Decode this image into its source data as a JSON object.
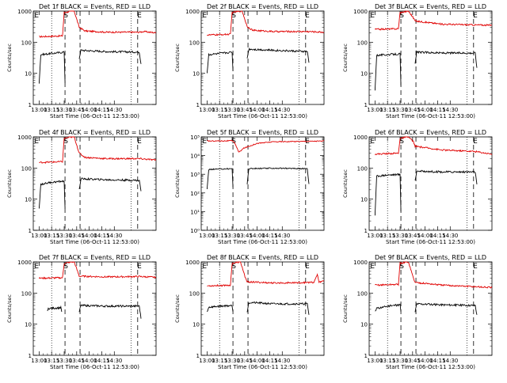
{
  "chart_data": [
    {
      "type": "line",
      "title": "Det 1f BLACK = Events, RED = LLD",
      "ylabel": "Counts/sec",
      "xlabel": "Start Time (06-Oct-11 12:53:00)",
      "scale": "log",
      "ylim": [
        1,
        1000
      ],
      "ytick_labels": [
        "1000",
        "100",
        "10",
        "1"
      ],
      "xtick_labels": [
        "13:00",
        "13:15",
        "13:30",
        "13:45",
        "14:00",
        "14:15",
        "14:30"
      ],
      "markers": [
        {
          "label": "E",
          "t": -3
        },
        {
          "label": "S",
          "t": 32
        },
        {
          "label": "E",
          "t": 120
        }
      ],
      "red": [
        [
          0,
          150
        ],
        [
          28,
          160
        ],
        [
          30,
          900
        ],
        [
          40,
          1000
        ],
        [
          42,
          1000
        ],
        [
          48,
          300
        ],
        [
          55,
          230
        ],
        [
          80,
          210
        ],
        [
          120,
          210
        ],
        [
          125,
          220
        ],
        [
          140,
          200
        ]
      ],
      "black": [
        [
          0,
          5
        ],
        [
          2,
          40
        ],
        [
          10,
          42
        ],
        [
          20,
          45
        ],
        [
          30,
          48
        ],
        [
          31,
          5
        ]
      ],
      "black2": [
        [
          48,
          30
        ],
        [
          50,
          55
        ],
        [
          80,
          50
        ],
        [
          120,
          48
        ],
        [
          122,
          20
        ]
      ]
    },
    {
      "type": "line",
      "title": "Det 2f BLACK = Events, RED = LLD",
      "ylabel": "Counts/sec",
      "xlabel": "Start Time (06-Oct-11 12:53:00)",
      "scale": "log",
      "ylim": [
        1,
        1000
      ],
      "ytick_labels": [
        "1000",
        "100",
        "10",
        "1"
      ],
      "xtick_labels": [
        "13:00",
        "13:15",
        "13:30",
        "13:45",
        "14:00",
        "14:15",
        "14:30"
      ],
      "markers": [
        {
          "label": "E",
          "t": -3
        },
        {
          "label": "S",
          "t": 32
        },
        {
          "label": "E",
          "t": 120
        }
      ],
      "red": [
        [
          0,
          170
        ],
        [
          28,
          180
        ],
        [
          30,
          900
        ],
        [
          40,
          1000
        ],
        [
          42,
          1000
        ],
        [
          48,
          320
        ],
        [
          55,
          240
        ],
        [
          80,
          220
        ],
        [
          120,
          220
        ],
        [
          140,
          210
        ]
      ],
      "black": [
        [
          0,
          10
        ],
        [
          2,
          40
        ],
        [
          10,
          42
        ],
        [
          20,
          45
        ],
        [
          30,
          48
        ],
        [
          31,
          12
        ]
      ],
      "black2": [
        [
          48,
          30
        ],
        [
          50,
          60
        ],
        [
          80,
          55
        ],
        [
          120,
          50
        ],
        [
          122,
          22
        ]
      ]
    },
    {
      "type": "line",
      "title": "Det 3f BLACK = Events, RED = LLD",
      "ylabel": "Counts/sec",
      "xlabel": "Start Time (06-Oct-11 12:53:00)",
      "scale": "log",
      "ylim": [
        1,
        1000
      ],
      "ytick_labels": [
        "1000",
        "100",
        "10",
        "1"
      ],
      "xtick_labels": [
        "13:00",
        "13:15",
        "13:30",
        "13:45",
        "14:00",
        "14:15",
        "14:30"
      ],
      "markers": [
        {
          "label": "E",
          "t": -3
        },
        {
          "label": "S",
          "t": 32
        },
        {
          "label": "E",
          "t": 120
        }
      ],
      "red": [
        [
          0,
          260
        ],
        [
          28,
          270
        ],
        [
          30,
          900
        ],
        [
          40,
          1000
        ],
        [
          46,
          600
        ],
        [
          48,
          480
        ],
        [
          80,
          380
        ],
        [
          120,
          360
        ],
        [
          140,
          350
        ]
      ],
      "black": [
        [
          0,
          3
        ],
        [
          2,
          38
        ],
        [
          15,
          40
        ],
        [
          30,
          42
        ],
        [
          31,
          4
        ]
      ],
      "black2": [
        [
          48,
          20
        ],
        [
          50,
          48
        ],
        [
          80,
          45
        ],
        [
          120,
          45
        ],
        [
          122,
          15
        ]
      ]
    },
    {
      "type": "line",
      "title": "Det 4f BLACK = Events, RED = LLD",
      "ylabel": "Counts/sec",
      "xlabel": "Start Time (06-Oct-11 12:53:00)",
      "scale": "log",
      "ylim": [
        1,
        1000
      ],
      "ytick_labels": [
        "1000",
        "100",
        "10",
        "1"
      ],
      "xtick_labels": [
        "13:00",
        "13:15",
        "13:30",
        "13:45",
        "14:00",
        "14:15",
        "14:30"
      ],
      "markers": [
        {
          "label": "E",
          "t": -3
        },
        {
          "label": "S",
          "t": 32
        },
        {
          "label": "E",
          "t": 120
        }
      ],
      "red": [
        [
          0,
          150
        ],
        [
          28,
          160
        ],
        [
          30,
          900
        ],
        [
          40,
          1000
        ],
        [
          42,
          1000
        ],
        [
          48,
          300
        ],
        [
          55,
          220
        ],
        [
          80,
          200
        ],
        [
          120,
          200
        ],
        [
          140,
          180
        ]
      ],
      "black": [
        [
          0,
          5
        ],
        [
          2,
          30
        ],
        [
          15,
          35
        ],
        [
          30,
          38
        ],
        [
          31,
          5
        ]
      ],
      "black2": [
        [
          48,
          20
        ],
        [
          50,
          45
        ],
        [
          80,
          42
        ],
        [
          120,
          40
        ],
        [
          122,
          18
        ]
      ]
    },
    {
      "type": "line",
      "title": "Det 5f BLACK = Events, RED = LLD",
      "ylabel": "Counts/sec",
      "xlabel": "Start Time (06-Oct-11 12:53:00)",
      "scale": "log",
      "ylim": [
        1,
        100000
      ],
      "ytick_labels": [
        "10⁵",
        "10⁴",
        "10³",
        "10²",
        "10¹",
        "10⁰"
      ],
      "xtick_labels": [
        "13:00",
        "13:15",
        "13:30",
        "13:45",
        "14:00",
        "14:15",
        "14:30"
      ],
      "markers": [
        {
          "label": "E",
          "t": -3
        },
        {
          "label": "S",
          "t": 32
        },
        {
          "label": "E",
          "t": 120
        }
      ],
      "red": [
        [
          0,
          60000
        ],
        [
          30,
          62000
        ],
        [
          33,
          50000
        ],
        [
          38,
          15000
        ],
        [
          44,
          25000
        ],
        [
          60,
          45000
        ],
        [
          80,
          55000
        ],
        [
          140,
          60000
        ]
      ],
      "black": [
        [
          0,
          150
        ],
        [
          2,
          1800
        ],
        [
          30,
          2000
        ],
        [
          31,
          200
        ]
      ],
      "black2": [
        [
          48,
          300
        ],
        [
          50,
          2000
        ],
        [
          80,
          2100
        ],
        [
          120,
          2000
        ],
        [
          122,
          300
        ]
      ]
    },
    {
      "type": "line",
      "title": "Det 6f BLACK = Events, RED = LLD",
      "ylabel": "Counts/sec",
      "xlabel": "Start Time (06-Oct-11 12:53:00)",
      "scale": "log",
      "ylim": [
        1,
        1000
      ],
      "ytick_labels": [
        "1000",
        "100",
        "10",
        "1"
      ],
      "xtick_labels": [
        "13:00",
        "13:15",
        "13:30",
        "13:45",
        "14:00",
        "14:15",
        "14:30"
      ],
      "markers": [
        {
          "label": "E",
          "t": -3
        },
        {
          "label": "S",
          "t": 32
        },
        {
          "label": "E",
          "t": 120
        }
      ],
      "red": [
        [
          0,
          280
        ],
        [
          28,
          300
        ],
        [
          30,
          900
        ],
        [
          40,
          1000
        ],
        [
          46,
          700
        ],
        [
          48,
          500
        ],
        [
          80,
          380
        ],
        [
          120,
          340
        ],
        [
          140,
          280
        ]
      ],
      "black": [
        [
          0,
          3
        ],
        [
          2,
          55
        ],
        [
          15,
          60
        ],
        [
          30,
          62
        ],
        [
          31,
          4
        ]
      ],
      "black2": [
        [
          48,
          40
        ],
        [
          50,
          80
        ],
        [
          80,
          75
        ],
        [
          120,
          75
        ],
        [
          122,
          30
        ]
      ]
    },
    {
      "type": "line",
      "title": "Det 7f BLACK = Events, RED = LLD",
      "ylabel": "Counts/sec",
      "xlabel": "Start Time (06-Oct-11 12:53:00)",
      "scale": "log",
      "ylim": [
        1,
        1000
      ],
      "ytick_labels": [
        "1000",
        "100",
        "10",
        "1"
      ],
      "xtick_labels": [
        "13:00",
        "13:15",
        "13:30",
        "13:45",
        "14:00",
        "14:15",
        "14:30"
      ],
      "markers": [
        {
          "label": "E",
          "t": -3
        },
        {
          "label": "S",
          "t": 32
        },
        {
          "label": "E",
          "t": 120
        }
      ],
      "red": [
        [
          0,
          300
        ],
        [
          28,
          310
        ],
        [
          30,
          900
        ],
        [
          40,
          1000
        ],
        [
          42,
          1000
        ],
        [
          48,
          350
        ],
        [
          80,
          330
        ],
        [
          120,
          340
        ],
        [
          140,
          320
        ]
      ],
      "black": [
        [
          10,
          25
        ],
        [
          11,
          32
        ],
        [
          20,
          33
        ],
        [
          26,
          34
        ],
        [
          27,
          25
        ]
      ],
      "black2": [
        [
          48,
          25
        ],
        [
          50,
          40
        ],
        [
          80,
          38
        ],
        [
          120,
          38
        ],
        [
          122,
          15
        ]
      ]
    },
    {
      "type": "line",
      "title": "Det 8f BLACK = Events, RED = LLD",
      "ylabel": "Counts/sec",
      "xlabel": "Start Time (06-Oct-11 12:53:00)",
      "scale": "log",
      "ylim": [
        1,
        1000
      ],
      "ytick_labels": [
        "1000",
        "100",
        "10",
        "1"
      ],
      "xtick_labels": [
        "13:00",
        "13:15",
        "13:30",
        "13:45",
        "14:00",
        "14:15",
        "14:30"
      ],
      "markers": [
        {
          "label": "E",
          "t": -3
        },
        {
          "label": "S",
          "t": 32
        },
        {
          "label": "E",
          "t": 120
        }
      ],
      "red": [
        [
          0,
          170
        ],
        [
          28,
          180
        ],
        [
          30,
          900
        ],
        [
          40,
          1000
        ],
        [
          46,
          300
        ],
        [
          48,
          230
        ],
        [
          80,
          210
        ],
        [
          128,
          220
        ],
        [
          132,
          400
        ],
        [
          134,
          220
        ],
        [
          140,
          250
        ]
      ],
      "black": [
        [
          0,
          25
        ],
        [
          2,
          35
        ],
        [
          15,
          38
        ],
        [
          30,
          40
        ],
        [
          31,
          25
        ]
      ],
      "black2": [
        [
          48,
          25
        ],
        [
          50,
          50
        ],
        [
          80,
          45
        ],
        [
          120,
          45
        ],
        [
          122,
          20
        ]
      ]
    },
    {
      "type": "line",
      "title": "Det 9f BLACK = Events, RED = LLD",
      "ylabel": "Counts/sec",
      "xlabel": "Start Time (06-Oct-11 12:53:00)",
      "scale": "log",
      "ylim": [
        1,
        1000
      ],
      "ytick_labels": [
        "1000",
        "100",
        "10",
        "1"
      ],
      "xtick_labels": [
        "13:00",
        "13:15",
        "13:30",
        "13:45",
        "14:00",
        "14:15",
        "14:30"
      ],
      "markers": [
        {
          "label": "E",
          "t": -3
        },
        {
          "label": "S",
          "t": 32
        },
        {
          "label": "E",
          "t": 120
        }
      ],
      "red": [
        [
          0,
          180
        ],
        [
          28,
          190
        ],
        [
          30,
          900
        ],
        [
          40,
          1000
        ],
        [
          46,
          300
        ],
        [
          48,
          220
        ],
        [
          80,
          180
        ],
        [
          120,
          160
        ],
        [
          140,
          150
        ]
      ],
      "black": [
        [
          0,
          25
        ],
        [
          2,
          32
        ],
        [
          15,
          38
        ],
        [
          30,
          42
        ],
        [
          31,
          25
        ]
      ],
      "black2": [
        [
          48,
          25
        ],
        [
          50,
          45
        ],
        [
          80,
          42
        ],
        [
          120,
          40
        ],
        [
          122,
          20
        ]
      ]
    }
  ]
}
